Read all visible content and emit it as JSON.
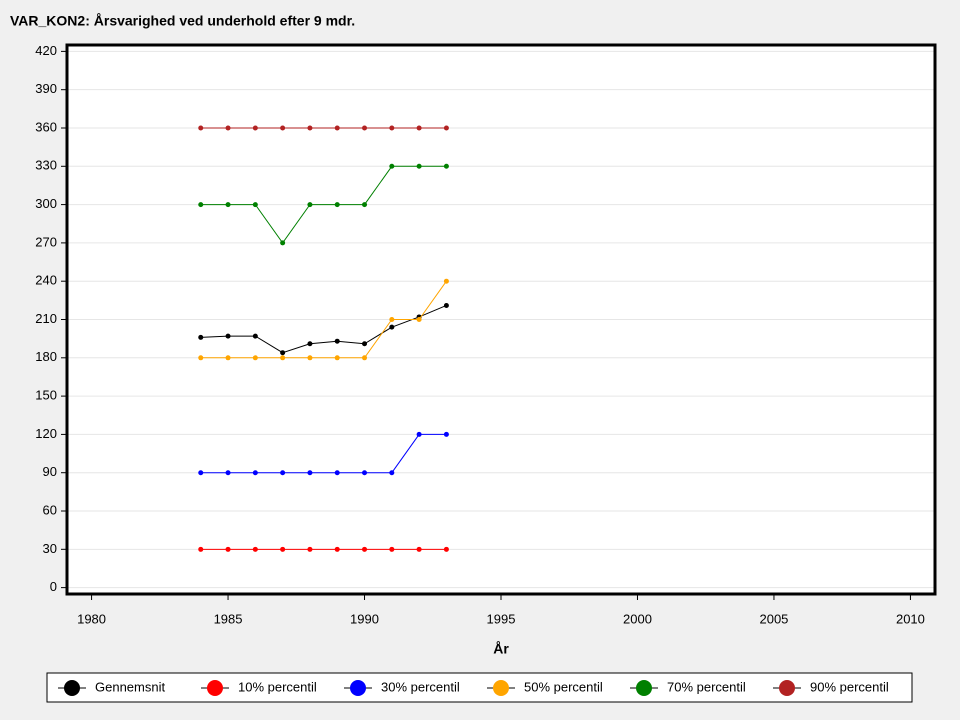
{
  "chart_data": {
    "type": "line",
    "title": "VAR_KON2: Årsvarighed ved underhold efter 9 mdr.",
    "x_label": "År",
    "x": [
      1984,
      1985,
      1986,
      1987,
      1988,
      1989,
      1990,
      1991,
      1992,
      1993
    ],
    "series": [
      {
        "name": "Gennemsnit",
        "color": "#000000",
        "values": [
          196,
          197,
          197,
          184,
          191,
          193,
          191,
          204,
          212,
          221
        ]
      },
      {
        "name": "10% percentil",
        "color": "#ff0000",
        "values": [
          30,
          30,
          30,
          30,
          30,
          30,
          30,
          30,
          30,
          30
        ]
      },
      {
        "name": "30% percentil",
        "color": "#0000ff",
        "values": [
          90,
          90,
          90,
          90,
          90,
          90,
          90,
          90,
          120,
          120
        ]
      },
      {
        "name": "50% percentil",
        "color": "#ffa500",
        "values": [
          180,
          180,
          180,
          180,
          180,
          180,
          180,
          210,
          210,
          240
        ]
      },
      {
        "name": "70% percentil",
        "color": "#008000",
        "values": [
          300,
          300,
          300,
          270,
          300,
          300,
          300,
          330,
          330,
          330
        ]
      },
      {
        "name": "90% percentil",
        "color": "#b22222",
        "values": [
          360,
          360,
          360,
          360,
          360,
          360,
          360,
          360,
          360,
          360
        ]
      }
    ],
    "xlim": [
      1979.1,
      2010.9
    ],
    "xticks": [
      1980,
      1985,
      1990,
      1995,
      2000,
      2005,
      2010
    ],
    "ylim": [
      -5,
      425
    ],
    "yticks": [
      0,
      30,
      60,
      90,
      120,
      150,
      180,
      210,
      240,
      270,
      300,
      330,
      360,
      390,
      420
    ],
    "grid": true,
    "legend": "bottom"
  }
}
